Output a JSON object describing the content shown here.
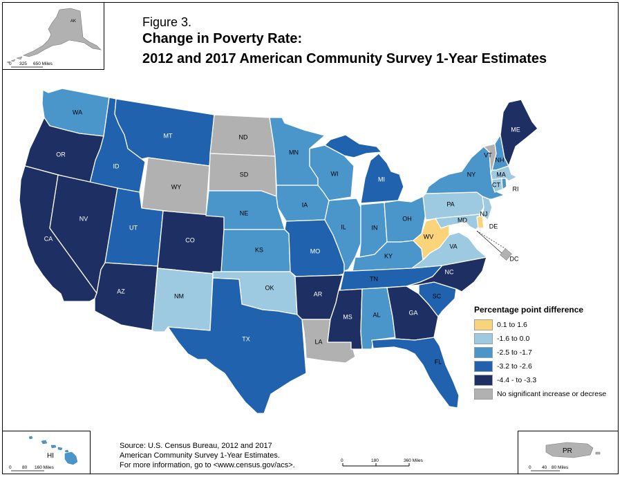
{
  "figure_label": "Figure 3.",
  "title_line1": "Change in Poverty Rate:",
  "title_line2": "2012 and 2017 American Community Survey 1-Year Estimates",
  "legend": {
    "title": "Percentage point difference",
    "items": [
      {
        "label": "0.1 to 1.6",
        "color": "#f9d47a"
      },
      {
        "label": "-1.6 to 0.0",
        "color": "#9ecae1"
      },
      {
        "label": "-2.5 to -1.7",
        "color": "#4a96cb"
      },
      {
        "label": "-3.2  to  -2.6",
        "color": "#2062ad"
      },
      {
        "label": "-4.4 - to -3.3",
        "color": "#1e2f63"
      },
      {
        "label": "No significant increase or decrese",
        "color": "#b1b1b1"
      }
    ]
  },
  "source": {
    "line1": "Source: U.S. Census Bureau, 2012 and 2017",
    "line2": "American Community Survey 1-Year Estimates.",
    "line3": "For more information, go to <www.census.gov/acs>."
  },
  "scale_main": {
    "t0": "0",
    "t1": "180",
    "t2": "360 Miles"
  },
  "scale_ak": {
    "t0": "0",
    "t1": "325",
    "t2": "650 Miles"
  },
  "scale_hi": {
    "t0": "0",
    "t1": "80",
    "t2": "160 Miles"
  },
  "scale_pr": {
    "t0": "0",
    "t1": "40",
    "t2": "80 Miles"
  },
  "states": {
    "WA": "WA",
    "OR": "OR",
    "CA": "CA",
    "ID": "ID",
    "NV": "NV",
    "MT": "MT",
    "WY": "WY",
    "UT": "UT",
    "AZ": "AZ",
    "CO": "CO",
    "NM": "NM",
    "ND": "ND",
    "SD": "SD",
    "NE": "NE",
    "KS": "KS",
    "OK": "OK",
    "TX": "TX",
    "MN": "MN",
    "IA": "IA",
    "MO": "MO",
    "AR": "AR",
    "LA": "LA",
    "WI": "WI",
    "IL": "IL",
    "MI": "MI",
    "IN": "IN",
    "OH": "OH",
    "KY": "KY",
    "TN": "TN",
    "MS": "MS",
    "AL": "AL",
    "GA": "GA",
    "FL": "FL",
    "SC": "SC",
    "NC": "NC",
    "VA": "VA",
    "WV": "WV",
    "PA": "PA",
    "NY": "NY",
    "VT": "VT",
    "NH": "NH",
    "ME": "ME",
    "MA": "MA",
    "CT": "CT",
    "RI": "RI",
    "NJ": "NJ",
    "DE": "DE",
    "MD": "MD",
    "DC": "DC",
    "AK": "AK",
    "HI": "HI",
    "PR": "PR"
  }
}
